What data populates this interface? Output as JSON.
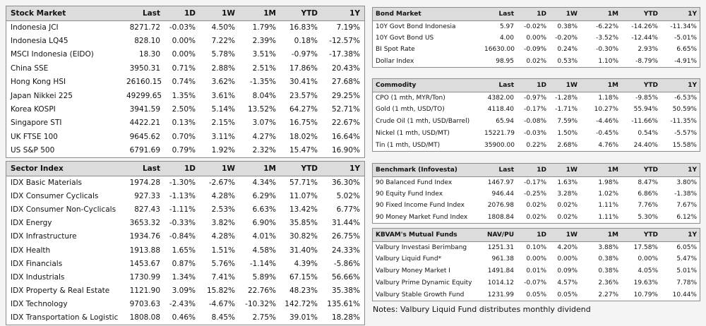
{
  "tables": [
    {
      "header": [
        "Stock Market",
        "Last",
        "1D",
        "1W",
        "1M",
        "YTD",
        "1Y"
      ],
      "rows": [
        [
          "Indonesia JCI",
          "8271.72",
          "-0.03%",
          "4.50%",
          "1.79%",
          "16.83%",
          "7.19%"
        ],
        [
          "Indonesia LQ45",
          "828.10",
          "0.00%",
          "7.22%",
          "2.39%",
          "0.18%",
          "-12.57%"
        ],
        [
          "MSCI Indonesia (EIDO)",
          "18.30",
          "0.00%",
          "5.78%",
          "3.51%",
          "-0.97%",
          "-17.38%"
        ],
        [
          "China SSE",
          "3950.31",
          "0.71%",
          "2.88%",
          "2.51%",
          "17.86%",
          "20.43%"
        ],
        [
          "Hong Kong HSI",
          "26160.15",
          "0.74%",
          "3.62%",
          "-1.35%",
          "30.41%",
          "27.68%"
        ],
        [
          "Japan Nikkei 225",
          "49299.65",
          "1.35%",
          "3.61%",
          "8.04%",
          "23.57%",
          "29.25%"
        ],
        [
          "Korea KOSPI",
          "3941.59",
          "2.50%",
          "5.14%",
          "13.52%",
          "64.27%",
          "52.71%"
        ],
        [
          "Singapore STI",
          "4422.21",
          "0.13%",
          "2.15%",
          "3.07%",
          "16.75%",
          "22.67%"
        ],
        [
          "UK FTSE 100",
          "9645.62",
          "0.70%",
          "3.11%",
          "4.27%",
          "18.02%",
          "16.64%"
        ],
        [
          "US S&P 500",
          "6791.69",
          "0.79%",
          "1.92%",
          "2.32%",
          "15.47%",
          "16.90%"
        ]
      ]
    },
    {
      "header": [
        "Sector Index",
        "Last",
        "1D",
        "1W",
        "1M",
        "YTD",
        "1Y"
      ],
      "rows": [
        [
          "IDX Basic Materials",
          "1974.28",
          "-1.30%",
          "-2.67%",
          "4.34%",
          "57.71%",
          "36.30%"
        ],
        [
          "IDX Consumer Cyclicals",
          "927.33",
          "-1.13%",
          "4.28%",
          "6.29%",
          "11.07%",
          "5.02%"
        ],
        [
          "IDX Consumer Non-Cyclicals",
          "827.43",
          "-1.11%",
          "2.53%",
          "6.63%",
          "13.42%",
          "6.77%"
        ],
        [
          "IDX Energy",
          "3653.32",
          "-0.33%",
          "3.82%",
          "6.90%",
          "35.85%",
          "31.44%"
        ],
        [
          "IDX Infrastructure",
          "1934.76",
          "-0.84%",
          "4.28%",
          "4.01%",
          "30.82%",
          "26.75%"
        ],
        [
          "IDX Health",
          "1913.88",
          "1.65%",
          "1.51%",
          "4.58%",
          "31.40%",
          "24.33%"
        ],
        [
          "IDX Financials",
          "1453.67",
          "0.87%",
          "5.76%",
          "-1.14%",
          "4.39%",
          "-5.86%"
        ],
        [
          "IDX Industrials",
          "1730.99",
          "1.34%",
          "7.41%",
          "5.89%",
          "67.15%",
          "56.66%"
        ],
        [
          "IDX Property & Real Estate",
          "1121.90",
          "3.09%",
          "15.82%",
          "22.76%",
          "48.23%",
          "35.38%"
        ],
        [
          "IDX Technology",
          "9703.63",
          "-2.43%",
          "-4.67%",
          "-10.32%",
          "142.72%",
          "135.61%"
        ],
        [
          "IDX Transportation & Logistic",
          "1808.08",
          "0.46%",
          "8.45%",
          "2.75%",
          "39.01%",
          "18.28%"
        ]
      ]
    },
    {
      "header": [
        "Bond Market",
        "Last",
        "1D",
        "1W",
        "1M",
        "YTD",
        "1Y"
      ],
      "rows": [
        [
          "10Y Govt Bond Indonesia",
          "5.97",
          "-0.02%",
          "0.38%",
          "-6.22%",
          "-14.26%",
          "-11.34%"
        ],
        [
          "10Y Govt Bond US",
          "4.00",
          "0.00%",
          "-0.20%",
          "-3.52%",
          "-12.44%",
          "-5.01%"
        ],
        [
          "BI Spot Rate",
          "16630.00",
          "-0.09%",
          "0.24%",
          "-0.30%",
          "2.93%",
          "6.65%"
        ],
        [
          "Dollar Index",
          "98.95",
          "0.02%",
          "0.53%",
          "1.10%",
          "-8.79%",
          "-4.91%"
        ]
      ]
    },
    {
      "header": [
        "Commodity",
        "Last",
        "1D",
        "1W",
        "1M",
        "YTD",
        "1Y"
      ],
      "rows": [
        [
          "CPO (1 mth, MYR/Ton)",
          "4382.00",
          "-0.97%",
          "-1.28%",
          "1.18%",
          "-9.85%",
          "-6.53%"
        ],
        [
          "Gold (1 mth, USD/TO)",
          "4118.40",
          "-0.17%",
          "-1.71%",
          "10.27%",
          "55.94%",
          "50.59%"
        ],
        [
          "Crude Oil (1 mth, USD/Barrel)",
          "65.94",
          "-0.08%",
          "7.59%",
          "-4.46%",
          "-11.66%",
          "-11.35%"
        ],
        [
          "Nickel (1 mth, USD/MT)",
          "15221.79",
          "-0.03%",
          "1.50%",
          "-0.45%",
          "0.54%",
          "-5.57%"
        ],
        [
          "Tin (1 mth, USD/MT)",
          "35900.00",
          "0.22%",
          "2.68%",
          "4.76%",
          "24.40%",
          "15.58%"
        ]
      ]
    },
    {
      "header": [
        "Benchmark (Infovesta)",
        "Last",
        "1D",
        "1W",
        "1M",
        "YTD",
        "1Y"
      ],
      "rows": [
        [
          "90 Balanced Fund Index",
          "1467.97",
          "-0.17%",
          "1.63%",
          "1.98%",
          "8.47%",
          "3.80%"
        ],
        [
          "90 Equity Fund Index",
          "946.44",
          "-0.25%",
          "3.28%",
          "1.02%",
          "6.86%",
          "-1.38%"
        ],
        [
          "90 Fixed Income Fund Index",
          "2076.98",
          "0.02%",
          "0.02%",
          "1.11%",
          "7.76%",
          "7.67%"
        ],
        [
          "90 Money Market Fund Index",
          "1808.84",
          "0.02%",
          "0.02%",
          "1.11%",
          "5.30%",
          "6.12%"
        ]
      ]
    },
    {
      "header": [
        "KBVAM's Mutual Funds",
        "NAV/PU",
        "1D",
        "1W",
        "1M",
        "YTD",
        "1Y"
      ],
      "rows": [
        [
          "Valbury Investasi Berimbang",
          "1251.31",
          "0.10%",
          "4.20%",
          "3.88%",
          "17.58%",
          "6.05%"
        ],
        [
          "Valbury Liquid Fund*",
          "961.38",
          "0.00%",
          "0.00%",
          "0.38%",
          "0.00%",
          "5.47%"
        ],
        [
          "Valbury Money Market I",
          "1491.84",
          "0.01%",
          "0.09%",
          "0.38%",
          "4.05%",
          "5.01%"
        ],
        [
          "Valbury Prime Dynamic Equity",
          "1014.12",
          "-0.07%",
          "4.57%",
          "2.36%",
          "19.63%",
          "7.78%"
        ],
        [
          "Valbury Stable Growth Fund",
          "1231.99",
          "0.05%",
          "0.05%",
          "2.27%",
          "10.79%",
          "10.44%"
        ]
      ]
    }
  ],
  "notes": "Notes: Valbury Liquid Fund distributes monthly dividend"
}
